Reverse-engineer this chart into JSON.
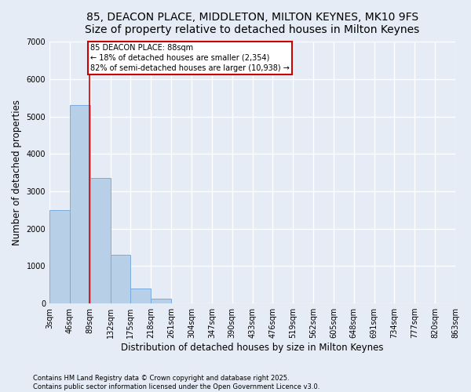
{
  "title_line1": "85, DEACON PLACE, MIDDLETON, MILTON KEYNES, MK10 9FS",
  "title_line2": "Size of property relative to detached houses in Milton Keynes",
  "xlabel": "Distribution of detached houses by size in Milton Keynes",
  "ylabel": "Number of detached properties",
  "bin_edges": [
    3,
    46,
    89,
    132,
    175,
    218,
    261,
    304,
    347,
    390,
    433,
    476,
    519,
    562,
    605,
    648,
    691,
    734,
    777,
    820,
    863
  ],
  "bar_heights": [
    2500,
    5300,
    3350,
    1300,
    400,
    130,
    0,
    0,
    0,
    0,
    0,
    0,
    0,
    0,
    0,
    0,
    0,
    0,
    0,
    0
  ],
  "bar_color": "#b8cfe8",
  "bar_edge_color": "#7aabe0",
  "background_color": "#e6ecf5",
  "grid_color": "#ffffff",
  "vline_x": 88,
  "vline_color": "#cc0000",
  "annotation_text": "85 DEACON PLACE: 88sqm\n← 18% of detached houses are smaller (2,354)\n82% of semi-detached houses are larger (10,938) →",
  "annotation_box_color": "#cc0000",
  "ylim": [
    0,
    7000
  ],
  "yticks": [
    0,
    1000,
    2000,
    3000,
    4000,
    5000,
    6000,
    7000
  ],
  "footer_line1": "Contains HM Land Registry data © Crown copyright and database right 2025.",
  "footer_line2": "Contains public sector information licensed under the Open Government Licence v3.0.",
  "title_fontsize": 10,
  "tick_labelsize": 7,
  "axis_label_fontsize": 8.5
}
